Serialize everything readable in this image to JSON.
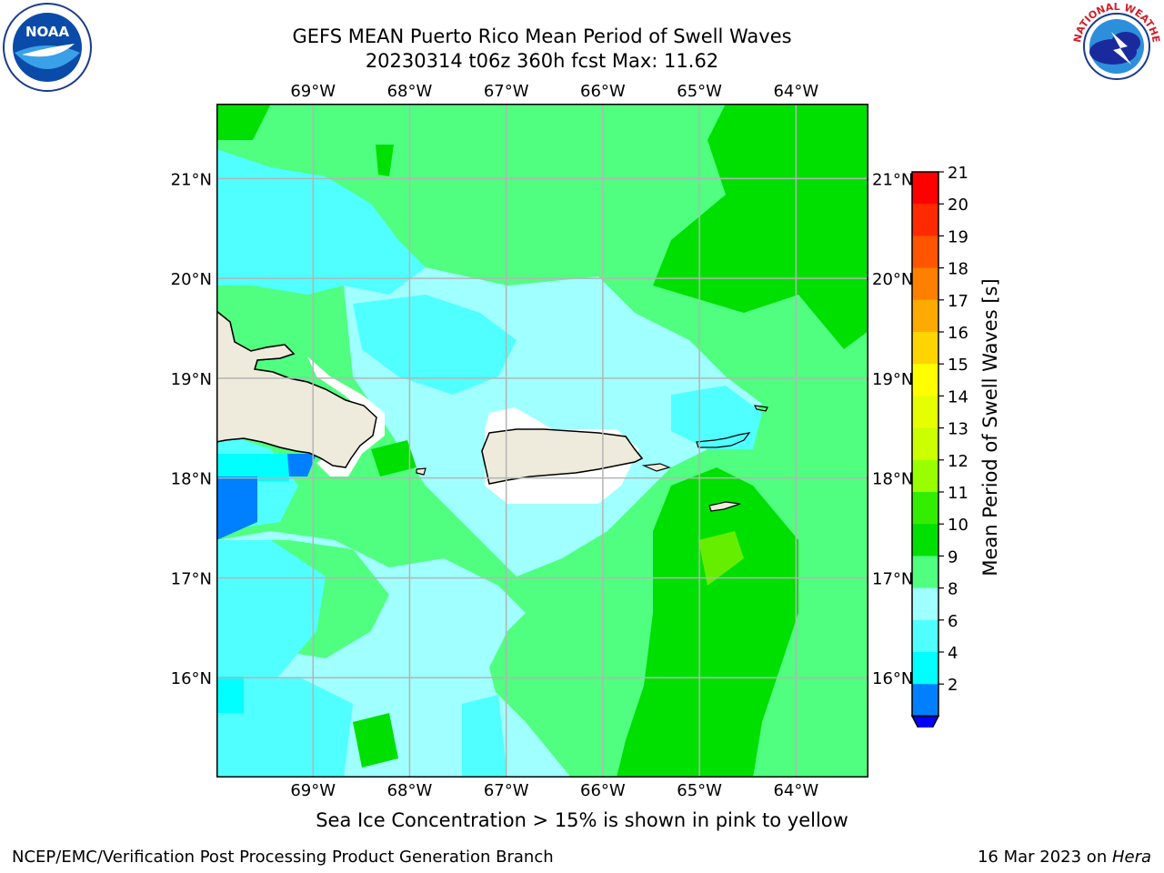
{
  "header": {
    "title_line1": "GEFS MEAN Puerto Rico Mean Period of Swell Waves",
    "title_line2": "20230314 t06z 360h fcst   Max: 11.62"
  },
  "logos": {
    "left": {
      "text": "NOAA",
      "icon": "noaa-logo-icon"
    },
    "right": {
      "text": "NATIONAL WEATHER SERVICE",
      "icon": "nws-logo-icon"
    }
  },
  "map": {
    "lon_labels": [
      "69°W",
      "68°W",
      "67°W",
      "66°W",
      "65°W",
      "64°W"
    ],
    "lat_labels": [
      "21°N",
      "20°N",
      "19°N",
      "18°N",
      "17°N",
      "16°N"
    ],
    "lon_range": [
      -70.0,
      -63.25
    ],
    "lat_range": [
      15.0,
      21.75
    ]
  },
  "colorbar": {
    "label": "Mean Period of Swell Waves [s]",
    "ticks": [
      "21",
      "20",
      "19",
      "18",
      "17",
      "16",
      "15",
      "14",
      "13",
      "12",
      "11",
      "10",
      "9",
      "8",
      "6",
      "4",
      "2"
    ],
    "colors": [
      "#ff0000",
      "#ff2a00",
      "#ff5500",
      "#ff8000",
      "#ffaa00",
      "#ffd400",
      "#ffff00",
      "#e6ff00",
      "#ccff00",
      "#99ff00",
      "#33ee00",
      "#00e000",
      "#50ff80",
      "#a0ffff",
      "#50ffff",
      "#00ffff",
      "#0080ff"
    ],
    "extend_color": "#0000ff"
  },
  "palette": {
    "land": "#eeebdc",
    "green_dark": "#00e000",
    "green_light": "#50ff80",
    "cyan_pale": "#a0ffff",
    "cyan_mid": "#50ffff",
    "cyan": "#00ffff",
    "blue": "#0080ff"
  },
  "note": "Sea Ice Concentration > 15% is shown in pink to yellow",
  "footer": {
    "left": "NCEP/EMC/Verification Post Processing Product Generation Branch",
    "date": "16 Mar 2023 on ",
    "machine": "Hera"
  }
}
